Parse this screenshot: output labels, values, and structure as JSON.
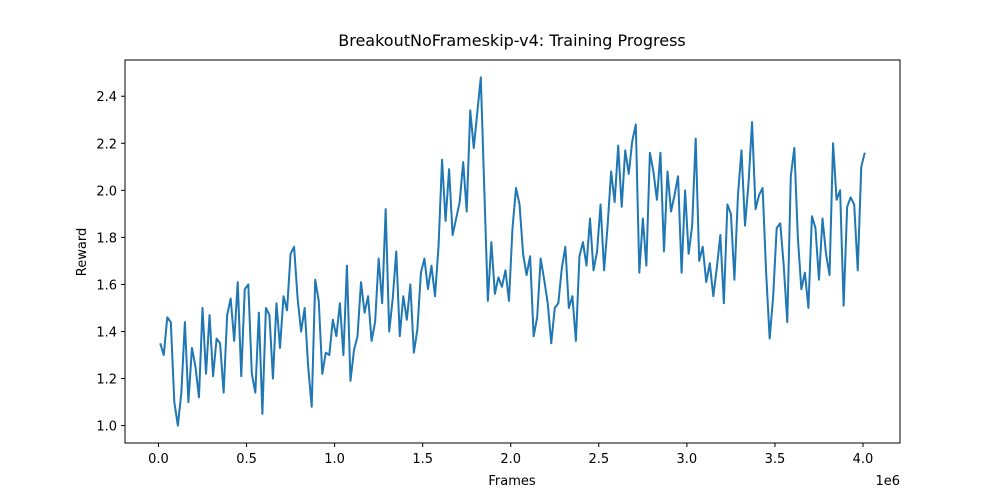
{
  "chart_data": {
    "type": "line",
    "title": "BreakoutNoFrameskip-v4: Training Progress",
    "x_label": "Frames",
    "y_label": "Reward",
    "x_offset_label": "1e6",
    "color": "#1f77b4",
    "x": [
      10000,
      30000,
      50000,
      70000,
      90000,
      110000,
      130000,
      150000,
      170000,
      190000,
      210000,
      230000,
      250000,
      270000,
      290000,
      310000,
      330000,
      350000,
      370000,
      390000,
      410000,
      430000,
      450000,
      470000,
      490000,
      510000,
      530000,
      550000,
      570000,
      590000,
      610000,
      630000,
      650000,
      670000,
      690000,
      710000,
      730000,
      750000,
      770000,
      790000,
      810000,
      830000,
      850000,
      870000,
      890000,
      910000,
      930000,
      950000,
      970000,
      990000,
      1010000,
      1030000,
      1050000,
      1070000,
      1090000,
      1110000,
      1130000,
      1150000,
      1170000,
      1190000,
      1210000,
      1230000,
      1250000,
      1270000,
      1290000,
      1310000,
      1330000,
      1350000,
      1370000,
      1390000,
      1410000,
      1430000,
      1450000,
      1470000,
      1490000,
      1510000,
      1530000,
      1550000,
      1570000,
      1590000,
      1610000,
      1630000,
      1650000,
      1670000,
      1690000,
      1710000,
      1730000,
      1750000,
      1770000,
      1790000,
      1810000,
      1830000,
      1850000,
      1870000,
      1890000,
      1910000,
      1930000,
      1950000,
      1970000,
      1990000,
      2010000,
      2030000,
      2050000,
      2070000,
      2090000,
      2110000,
      2130000,
      2150000,
      2170000,
      2190000,
      2210000,
      2230000,
      2250000,
      2270000,
      2290000,
      2310000,
      2330000,
      2350000,
      2370000,
      2390000,
      2410000,
      2430000,
      2450000,
      2470000,
      2490000,
      2510000,
      2530000,
      2550000,
      2570000,
      2590000,
      2610000,
      2630000,
      2650000,
      2670000,
      2690000,
      2710000,
      2730000,
      2750000,
      2770000,
      2790000,
      2810000,
      2830000,
      2850000,
      2870000,
      2890000,
      2910000,
      2930000,
      2950000,
      2970000,
      2990000,
      3010000,
      3030000,
      3050000,
      3070000,
      3090000,
      3110000,
      3130000,
      3150000,
      3170000,
      3190000,
      3210000,
      3230000,
      3250000,
      3270000,
      3290000,
      3310000,
      3330000,
      3350000,
      3370000,
      3390000,
      3410000,
      3430000,
      3450000,
      3470000,
      3490000,
      3510000,
      3530000,
      3550000,
      3570000,
      3590000,
      3610000,
      3630000,
      3650000,
      3670000,
      3690000,
      3710000,
      3730000,
      3750000,
      3770000,
      3790000,
      3810000,
      3830000,
      3850000,
      3870000,
      3890000,
      3910000,
      3930000,
      3950000,
      3970000,
      3990000,
      4010000
    ],
    "values": [
      1.35,
      1.3,
      1.46,
      1.44,
      1.1,
      1.0,
      1.14,
      1.44,
      1.1,
      1.33,
      1.25,
      1.12,
      1.5,
      1.22,
      1.47,
      1.21,
      1.37,
      1.35,
      1.14,
      1.47,
      1.54,
      1.36,
      1.61,
      1.21,
      1.58,
      1.6,
      1.22,
      1.14,
      1.48,
      1.05,
      1.5,
      1.47,
      1.2,
      1.52,
      1.33,
      1.55,
      1.49,
      1.73,
      1.76,
      1.54,
      1.4,
      1.5,
      1.25,
      1.08,
      1.62,
      1.53,
      1.22,
      1.31,
      1.3,
      1.45,
      1.38,
      1.52,
      1.3,
      1.68,
      1.19,
      1.32,
      1.38,
      1.61,
      1.48,
      1.55,
      1.36,
      1.44,
      1.71,
      1.52,
      1.92,
      1.4,
      1.54,
      1.74,
      1.38,
      1.55,
      1.45,
      1.6,
      1.31,
      1.41,
      1.65,
      1.71,
      1.58,
      1.68,
      1.55,
      1.76,
      2.13,
      1.87,
      2.09,
      1.81,
      1.88,
      1.95,
      2.12,
      1.91,
      2.34,
      2.18,
      2.33,
      2.48,
      2.0,
      1.53,
      1.78,
      1.56,
      1.63,
      1.59,
      1.66,
      1.53,
      1.84,
      2.01,
      1.94,
      1.73,
      1.64,
      1.72,
      1.38,
      1.46,
      1.71,
      1.62,
      1.52,
      1.35,
      1.5,
      1.52,
      1.67,
      1.76,
      1.5,
      1.55,
      1.36,
      1.72,
      1.78,
      1.68,
      1.88,
      1.66,
      1.74,
      1.94,
      1.66,
      1.85,
      2.08,
      1.95,
      2.19,
      1.93,
      2.17,
      2.07,
      2.21,
      2.28,
      1.65,
      1.88,
      1.68,
      2.16,
      2.08,
      1.96,
      2.16,
      1.74,
      2.08,
      1.91,
      1.98,
      2.06,
      1.65,
      2.0,
      1.73,
      1.85,
      2.22,
      1.7,
      1.76,
      1.61,
      1.69,
      1.55,
      1.67,
      1.81,
      1.52,
      1.94,
      1.9,
      1.62,
      1.98,
      2.17,
      1.85,
      2.03,
      2.29,
      1.92,
      1.98,
      2.01,
      1.65,
      1.37,
      1.55,
      1.84,
      1.86,
      1.68,
      1.44,
      2.06,
      2.18,
      1.8,
      1.58,
      1.65,
      1.5,
      1.89,
      1.84,
      1.62,
      1.88,
      1.73,
      1.64,
      2.2,
      1.96,
      2.0,
      1.51,
      1.93,
      1.97,
      1.94,
      1.66,
      2.1,
      2.16
    ],
    "xlim": [
      -190000,
      4210000
    ],
    "xticks": [
      {
        "value": 0,
        "label": "0.0"
      },
      {
        "value": 500000,
        "label": "0.5"
      },
      {
        "value": 1000000,
        "label": "1.0"
      },
      {
        "value": 1500000,
        "label": "1.5"
      },
      {
        "value": 2000000,
        "label": "2.0"
      },
      {
        "value": 2500000,
        "label": "2.5"
      },
      {
        "value": 3000000,
        "label": "3.0"
      },
      {
        "value": 3500000,
        "label": "3.5"
      },
      {
        "value": 4000000,
        "label": "4.0"
      }
    ],
    "ylim": [
      0.926,
      2.554
    ],
    "yticks": [
      {
        "value": 1,
        "label": "1.0"
      },
      1.2,
      1.4,
      1.6,
      1.8,
      {
        "value": 2,
        "label": "2.0"
      },
      2.2,
      2.4
    ],
    "grid": false
  }
}
